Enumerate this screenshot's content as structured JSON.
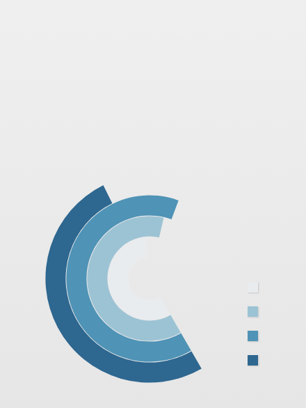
{
  "chart_data": {
    "type": "radial_bar",
    "categories": [
      null,
      null,
      null,
      null
    ],
    "values": [
      57,
      62,
      64,
      51
    ],
    "colors": [
      "#e9ecef",
      "#9cc3d4",
      "#4f93b6",
      "#2e6790"
    ],
    "ylim": [
      0,
      100
    ],
    "tick_labels": false,
    "legend": "right"
  }
}
